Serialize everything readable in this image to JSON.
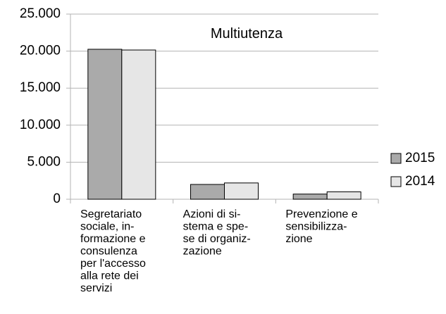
{
  "chart_data": {
    "type": "bar",
    "title": "Multiutenza",
    "categories": [
      "Segretariato\nsociale, in-\nformazione e\nconsulenza\nper l'accesso\nalla rete dei\nservizi",
      "Azioni di si-\nstema e spe-\nse di organiz-\nzazione",
      "Prevenzione e\nsensibilizza-\nzione"
    ],
    "series": [
      {
        "name": "2015",
        "color": "#aaaaaa",
        "values": [
          20250,
          2000,
          700
        ]
      },
      {
        "name": "2014",
        "color": "#e6e6e6",
        "values": [
          20150,
          2200,
          1000
        ]
      }
    ],
    "ylim": [
      0,
      25000
    ],
    "yticks": [
      0,
      {
        "value": 5000,
        "label": "5.000"
      },
      {
        "value": 10000,
        "label": "10.000"
      },
      {
        "value": 15000,
        "label": "15.000"
      },
      {
        "value": 20000,
        "label": "20.000"
      },
      {
        "value": 25000,
        "label": "25.000"
      }
    ],
    "grid": true,
    "legend": "right"
  }
}
